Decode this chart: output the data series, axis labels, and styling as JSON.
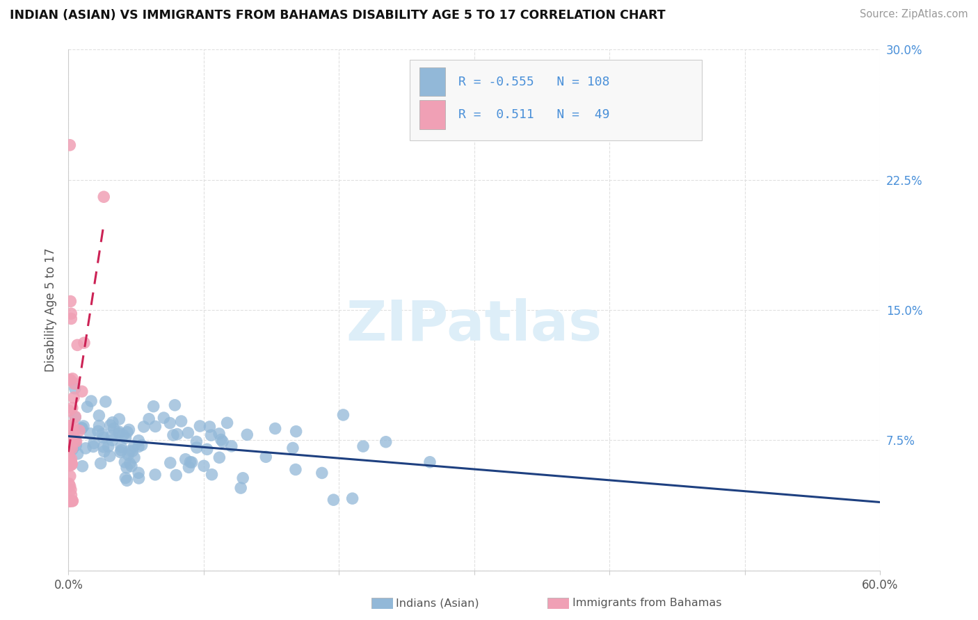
{
  "title": "INDIAN (ASIAN) VS IMMIGRANTS FROM BAHAMAS DISABILITY AGE 5 TO 17 CORRELATION CHART",
  "source": "Source: ZipAtlas.com",
  "ylabel": "Disability Age 5 to 17",
  "xlim": [
    0.0,
    0.6
  ],
  "ylim": [
    0.0,
    0.3
  ],
  "legend1_R": "-0.555",
  "legend1_N": "108",
  "legend2_R": "0.511",
  "legend2_N": "49",
  "blue_color": "#92b8d8",
  "pink_color": "#f0a0b5",
  "blue_line_color": "#1e4080",
  "pink_line_color": "#cc2255",
  "watermark_color": "#ddeef8",
  "background_color": "#ffffff",
  "grid_color": "#dddddd",
  "title_color": "#111111",
  "source_color": "#999999",
  "axis_label_color": "#555555",
  "right_tick_color": "#4a90d9",
  "legend_bg": "#f8f8f8",
  "legend_border": "#cccccc"
}
